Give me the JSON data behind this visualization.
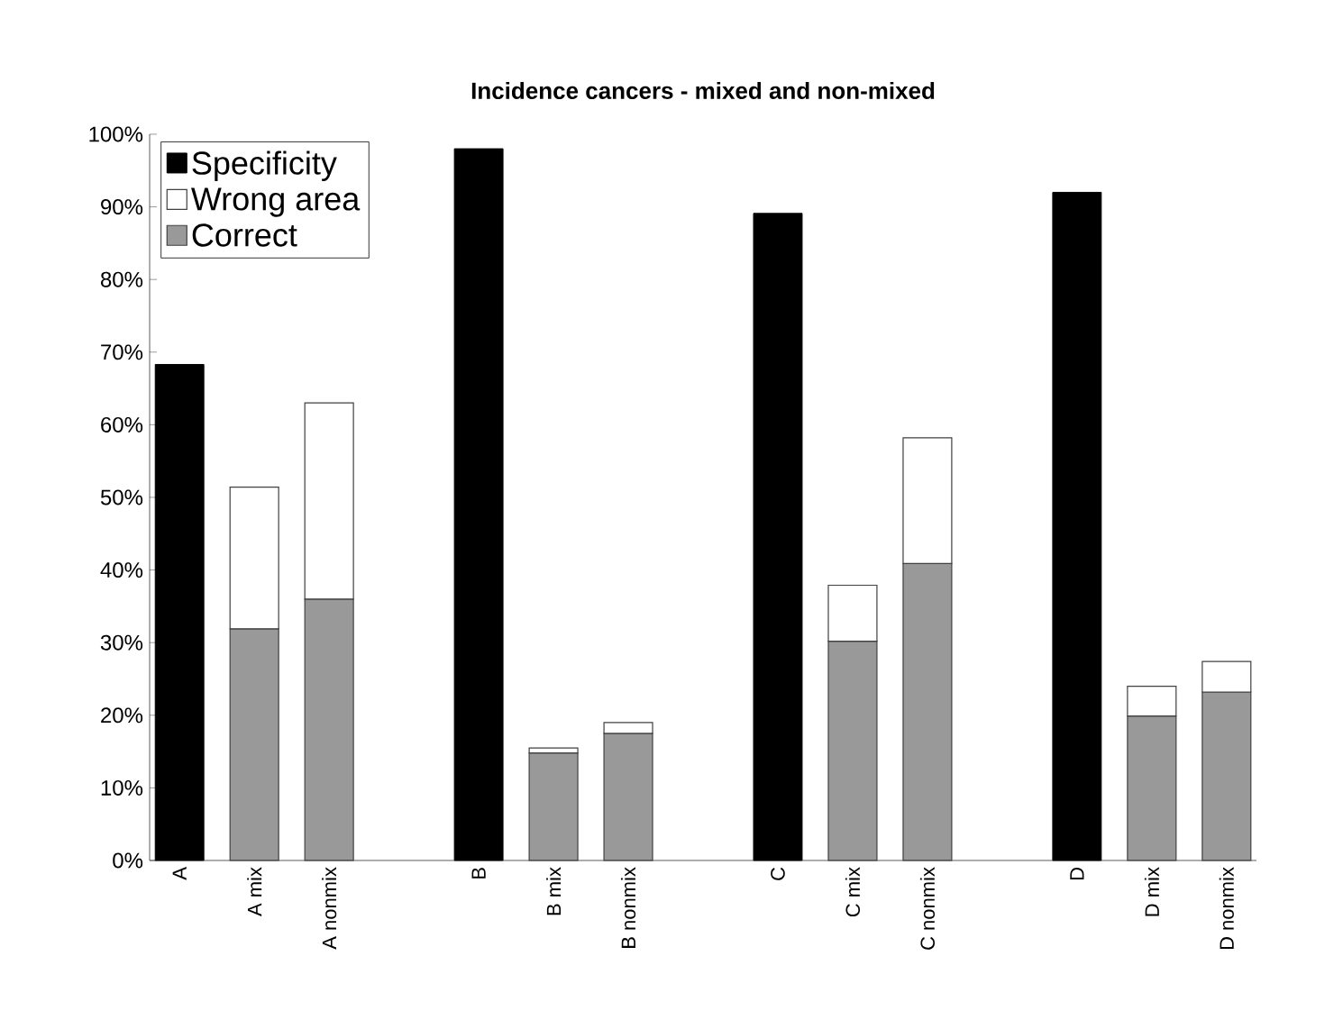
{
  "chart_data": {
    "type": "bar",
    "title": "Incidence cancers - mixed and non-mixed",
    "stacked": true,
    "categories": [
      "A",
      "A mix",
      "A nonmix",
      null,
      "B",
      "B mix",
      "B nonmix",
      null,
      "C",
      "C mix",
      "C nonmix",
      null,
      "D",
      "D mix",
      "D nonmix"
    ],
    "series": [
      {
        "name": "Correct",
        "color": "#999999",
        "values": [
          null,
          31.9,
          36.0,
          null,
          null,
          14.8,
          17.5,
          null,
          null,
          30.2,
          40.9,
          null,
          null,
          19.9,
          23.2
        ]
      },
      {
        "name": "Wrong area",
        "color": "#ffffff",
        "values": [
          null,
          19.5,
          27.0,
          null,
          null,
          0.7,
          1.5,
          null,
          null,
          7.7,
          17.3,
          null,
          null,
          4.1,
          4.2
        ]
      },
      {
        "name": "Specificity",
        "color": "#000000",
        "values": [
          68.3,
          null,
          null,
          null,
          98.0,
          null,
          null,
          null,
          89.1,
          null,
          null,
          null,
          92.0,
          null,
          null
        ]
      }
    ],
    "ylim": [
      0,
      100
    ],
    "yticks": [
      {
        "value": 0,
        "label": "0%"
      },
      {
        "value": 10,
        "label": "10%"
      },
      {
        "value": 20,
        "label": "20%"
      },
      {
        "value": 30,
        "label": "30%"
      },
      {
        "value": 40,
        "label": "40%"
      },
      {
        "value": 50,
        "label": "50%"
      },
      {
        "value": 60,
        "label": "60%"
      },
      {
        "value": 70,
        "label": "70%"
      },
      {
        "value": 80,
        "label": "80%"
      },
      {
        "value": 90,
        "label": "90%"
      },
      {
        "value": 100,
        "label": "100%"
      }
    ],
    "legend": "top left"
  }
}
